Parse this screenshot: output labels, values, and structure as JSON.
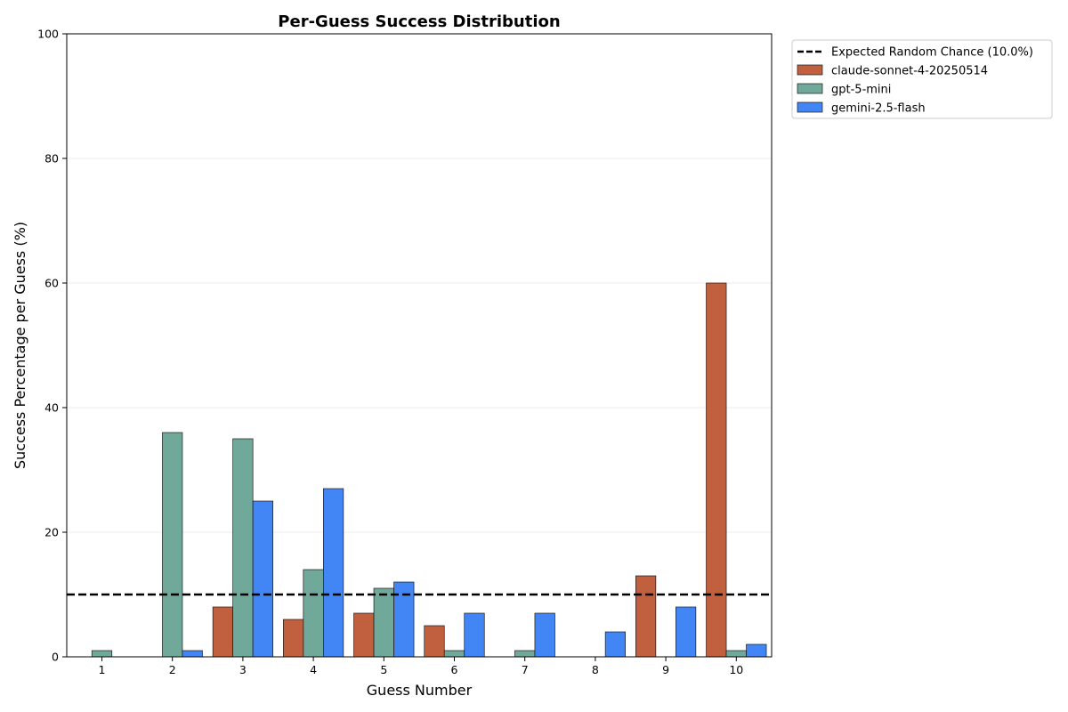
{
  "chart_data": {
    "type": "bar",
    "title": "Per-Guess Success Distribution",
    "xlabel": "Guess Number",
    "ylabel": "Success Percentage per Guess (%)",
    "categories": [
      "1",
      "2",
      "3",
      "4",
      "5",
      "6",
      "7",
      "8",
      "9",
      "10"
    ],
    "ylim": [
      0,
      100
    ],
    "yticks": [
      0,
      20,
      40,
      60,
      80,
      100
    ],
    "grid": "horizontal",
    "legend_position": "outside-top-right",
    "series": [
      {
        "name": "claude-sonnet-4-20250514",
        "color": "#c0603e",
        "values": [
          0,
          0,
          8,
          6,
          7,
          5,
          0,
          0,
          13,
          60
        ]
      },
      {
        "name": "gpt-5-mini",
        "color": "#70a89a",
        "values": [
          1,
          36,
          35,
          14,
          11,
          1,
          1,
          0,
          0,
          1
        ]
      },
      {
        "name": "gemini-2.5-flash",
        "color": "#4285f4",
        "values": [
          0,
          1,
          25,
          27,
          12,
          7,
          7,
          4,
          8,
          2
        ]
      }
    ],
    "reference_line": {
      "label": "Expected Random Chance (10.0%)",
      "value": 10,
      "color": "#000000",
      "style": "dashed"
    }
  }
}
